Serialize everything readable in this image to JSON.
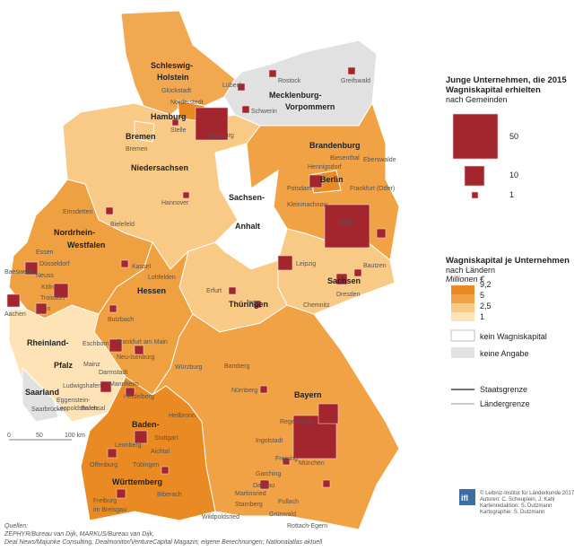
{
  "legend": {
    "title_lines": [
      "Junge Unternehmen, die 2015",
      "Wagniskapital erhielten"
    ],
    "subtitle": "nach Gemeinden",
    "sizes": [
      "50",
      "10",
      "1"
    ],
    "color_title": "Wagniskapital je Unternehmen",
    "color_subtitle": "nach Ländern",
    "color_unit": "Millionen €",
    "classes": [
      "9,2",
      "5",
      "2,5",
      "1"
    ],
    "none": "kein Wagniskapital",
    "na": "keine Angabe",
    "border_state": "Staatsgrenze",
    "border_land": "Ländergrenze"
  },
  "states": [
    [
      "Schleswig-",
      "Holstein"
    ],
    [
      "Mecklenburg-",
      "Vorpommern"
    ],
    [
      "Hamburg"
    ],
    [
      "Bremen"
    ],
    [
      "Niedersachsen"
    ],
    [
      "Brandenburg"
    ],
    [
      "Berlin"
    ],
    [
      "Sachsen-",
      "Anhalt"
    ],
    [
      "Sachsen"
    ],
    [
      "Thüringen"
    ],
    [
      "Nordrhein-",
      "Westfalen"
    ],
    [
      "Hessen"
    ],
    [
      "Rheinland-",
      "Pfalz"
    ],
    [
      "Saarland"
    ],
    [
      "Baden-",
      "Württemberg"
    ],
    [
      "Bayern"
    ]
  ],
  "cities": [
    "Rostock",
    "Greifswald",
    "Lübeck",
    "Schwerin",
    "Glückstadt",
    "Norderstedt",
    "Stelle",
    "Hamburg",
    "Bremen",
    "Hannover",
    "Emsdetten",
    "Bielefeld",
    "Essen",
    "Düsseldorf",
    "Neuss",
    "Köln",
    "Troisdorf",
    "Bonn",
    "Kassel",
    "Lohfelden",
    "Butzbach",
    "Eschborn",
    "Frankfurt am Main",
    "Mainz",
    "Darmstadt",
    "Neu-Isenburg",
    "Ludwigshafen",
    "Mannheim",
    "Heidelberg",
    "Würzburg",
    "Bamberg",
    "Nürnberg",
    "Erfurt",
    "Jena",
    "Leipzig",
    "Dresden",
    "Chemnitz",
    "Bautzen",
    "Biesenthal",
    "Hennigsdorf",
    "Potsdam",
    "Kleinmachnow",
    "Berlin",
    "Frankfurt (Oder)",
    "Eberswalde",
    "Regensburg",
    "Ingolstadt",
    "Freising",
    "Garching",
    "Dachau",
    "München",
    "Martinsried",
    "Starnberg",
    "Pullach",
    "Grünwald",
    "Rottach-Egern",
    "Wildpoldsried",
    "Heilbronn",
    "Stuttgart",
    "Leonberg",
    "Aichtal",
    "Tübingen",
    "Offenburg",
    "Freiburg",
    "im Breisgau",
    "Biberach",
    "Bruchsal",
    "Eggenstein-",
    "Leopoldshafen",
    "Saarbrücken",
    "Aachen",
    "Baesweiler"
  ],
  "scale": [
    "0",
    "50",
    "100 km"
  ],
  "sources": [
    "Quellen:",
    "ZEPHYR/Bureau van Dijk, MARKUS/Bureau van Dijk,",
    "Deal News/Majunke Consulting, Dealmonitor/VentureCapital Magazin; eigene Berechnungen; Nationalatlas aktuell"
  ],
  "credits": [
    "© Leibniz-Institut für Länderkunde 2017",
    "Autoren: C. Scheuplein, J. Kahl",
    "Kartenredaktion: S. Dutzmann",
    "Kartographie: S. Dutzmann"
  ],
  "logo": "ifl"
}
